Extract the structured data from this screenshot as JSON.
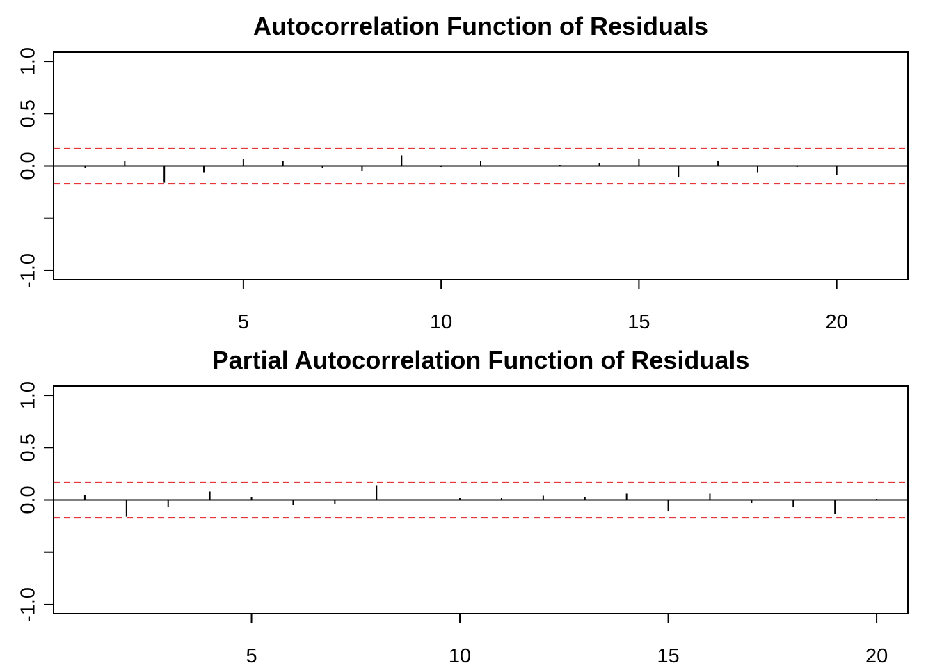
{
  "chart_data": [
    {
      "type": "bar",
      "title": "Autocorrelation Function of Residuals",
      "xlabel": "",
      "ylabel": "",
      "ylim": [
        -1.0,
        1.0
      ],
      "xlim": [
        0.2,
        21.8
      ],
      "x_ticks": [
        5,
        10,
        15,
        20
      ],
      "y_ticks": [
        -1.0,
        -0.5,
        0.0,
        0.5,
        1.0
      ],
      "y_tick_labels": [
        "-1.0",
        "",
        "0.0",
        "0.5",
        "1.0"
      ],
      "ci": [
        0.17,
        -0.17
      ],
      "lags": [
        1,
        2,
        3,
        4,
        5,
        6,
        7,
        8,
        9,
        10,
        11,
        12,
        13,
        14,
        15,
        16,
        17,
        18,
        19,
        20
      ],
      "values": [
        -0.02,
        0.05,
        -0.16,
        -0.06,
        0.07,
        0.05,
        -0.02,
        -0.05,
        0.1,
        -0.01,
        0.05,
        0.0,
        0.01,
        0.03,
        0.07,
        -0.11,
        0.05,
        -0.06,
        -0.01,
        -0.09
      ]
    },
    {
      "type": "bar",
      "title": "Partial Autocorrelation Function of Residuals",
      "xlabel": "",
      "ylabel": "",
      "ylim": [
        -1.0,
        1.0
      ],
      "xlim": [
        0.25,
        20.75
      ],
      "x_ticks": [
        5,
        10,
        15,
        20
      ],
      "y_ticks": [
        -1.0,
        -0.5,
        0.0,
        0.5,
        1.0
      ],
      "y_tick_labels": [
        "-1.0",
        "",
        "0.0",
        "0.5",
        "1.0"
      ],
      "ci": [
        0.17,
        -0.17
      ],
      "lags": [
        1,
        2,
        3,
        4,
        5,
        6,
        7,
        8,
        9,
        10,
        11,
        12,
        13,
        14,
        15,
        16,
        17,
        18,
        19,
        20
      ],
      "values": [
        0.05,
        -0.16,
        -0.07,
        0.08,
        0.03,
        -0.05,
        -0.04,
        0.14,
        0.0,
        0.02,
        0.02,
        0.04,
        0.03,
        0.06,
        -0.11,
        0.06,
        -0.03,
        -0.07,
        -0.13,
        0.01
      ]
    }
  ]
}
